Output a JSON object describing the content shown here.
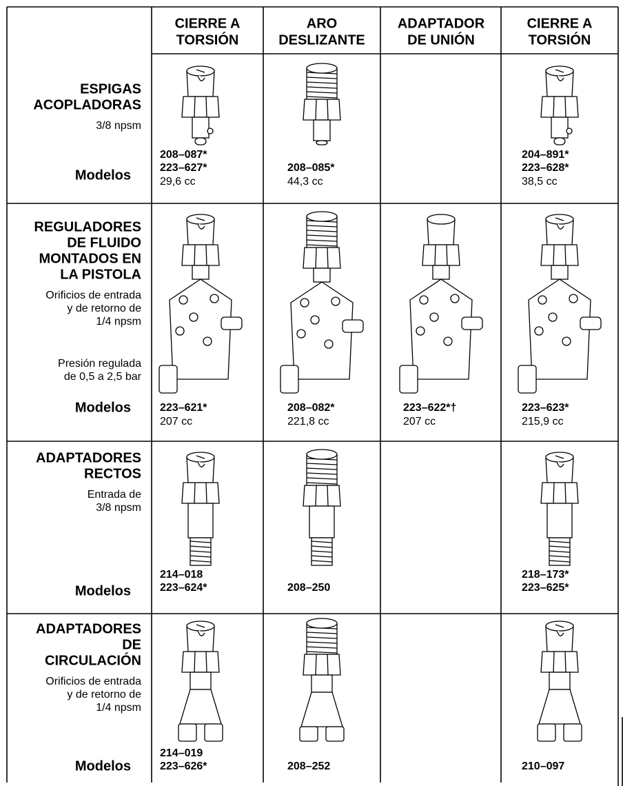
{
  "header": {
    "columns": [
      [
        "CIERRE A",
        "TORSIÓN"
      ],
      [
        "ARO",
        "DESLIZANTE"
      ],
      [
        "ADAPTADOR",
        "DE UNIÓN"
      ],
      [
        "CIERRE A",
        "TORSIÓN"
      ]
    ]
  },
  "rows": [
    {
      "title": [
        "ESPIGAS",
        "ACOPLADORAS"
      ],
      "notes": [
        [
          "3/8 npsm"
        ]
      ],
      "models_label": "Modelos",
      "cells": [
        {
          "parts": [
            "208–087*",
            "223–627*"
          ],
          "volume": "29,6 cc"
        },
        {
          "parts": [
            "208–085*"
          ],
          "volume": "44,3 cc"
        },
        null,
        {
          "parts": [
            "204–891*",
            "223–628*"
          ],
          "volume": "38,5 cc"
        }
      ]
    },
    {
      "title": [
        "REGULADORES",
        "DE FLUIDO",
        "MONTADOS EN",
        "LA PISTOLA"
      ],
      "notes": [
        [
          "Orificios de entrada",
          "y de retorno de",
          "1/4 npsm"
        ],
        [
          "Presión regulada",
          "de 0,5 a 2,5 bar"
        ]
      ],
      "models_label": "Modelos",
      "cells": [
        {
          "parts": [
            "223–621*"
          ],
          "volume": "207 cc"
        },
        {
          "parts": [
            "208–082*"
          ],
          "volume": "221,8 cc"
        },
        {
          "parts": [
            "223–622*†"
          ],
          "volume": "207 cc"
        },
        {
          "parts": [
            "223–623*"
          ],
          "volume": "215,9 cc"
        }
      ]
    },
    {
      "title": [
        "ADAPTADORES",
        "RECTOS"
      ],
      "notes": [
        [
          "Entrada de",
          "3/8 npsm"
        ]
      ],
      "models_label": "Modelos",
      "cells": [
        {
          "parts": [
            "214–018",
            "223–624*"
          ]
        },
        {
          "parts": [
            "208–250"
          ]
        },
        null,
        {
          "parts": [
            "218–173*",
            "223–625*"
          ]
        }
      ]
    },
    {
      "title": [
        "ADAPTADORES",
        "DE",
        "CIRCULACIÓN"
      ],
      "notes": [
        [
          "Orificios de entrada",
          "y de retorno de",
          "1/4 npsm"
        ]
      ],
      "models_label": "Modelos",
      "cells": [
        {
          "parts": [
            "214–019",
            "223–626*"
          ]
        },
        {
          "parts": [
            "208–252"
          ]
        },
        null,
        {
          "parts": [
            "210–097"
          ]
        }
      ]
    }
  ]
}
